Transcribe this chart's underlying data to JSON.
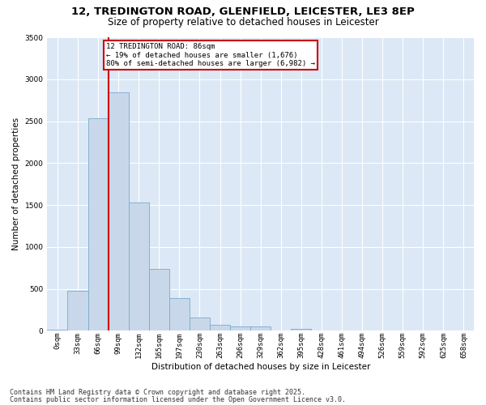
{
  "title1": "12, TREDINGTON ROAD, GLENFIELD, LEICESTER, LE3 8EP",
  "title2": "Size of property relative to detached houses in Leicester",
  "xlabel": "Distribution of detached houses by size in Leicester",
  "ylabel": "Number of detached properties",
  "bar_color": "#c8d8ea",
  "bar_edge_color": "#7aaac8",
  "highlight_line_color": "#cc0000",
  "categories": [
    "0sqm",
    "33sqm",
    "66sqm",
    "99sqm",
    "132sqm",
    "165sqm",
    "197sqm",
    "230sqm",
    "263sqm",
    "296sqm",
    "329sqm",
    "362sqm",
    "395sqm",
    "428sqm",
    "461sqm",
    "494sqm",
    "526sqm",
    "559sqm",
    "592sqm",
    "625sqm",
    "658sqm"
  ],
  "values": [
    15,
    480,
    2530,
    2840,
    1530,
    740,
    390,
    155,
    75,
    55,
    50,
    0,
    25,
    0,
    0,
    0,
    0,
    0,
    0,
    0,
    0
  ],
  "highlight_bar_index": 2,
  "annotation_title": "12 TREDINGTON ROAD: 86sqm",
  "annotation_line1": "← 19% of detached houses are smaller (1,676)",
  "annotation_line2": "80% of semi-detached houses are larger (6,982) →",
  "ylim": [
    0,
    3500
  ],
  "yticks": [
    0,
    500,
    1000,
    1500,
    2000,
    2500,
    3000,
    3500
  ],
  "plot_bg_color": "#dce8f5",
  "footer1": "Contains HM Land Registry data © Crown copyright and database right 2025.",
  "footer2": "Contains public sector information licensed under the Open Government Licence v3.0.",
  "title_fontsize": 9.5,
  "subtitle_fontsize": 8.5,
  "axis_label_fontsize": 7.5,
  "tick_fontsize": 6.5,
  "bar_width": 1.0
}
